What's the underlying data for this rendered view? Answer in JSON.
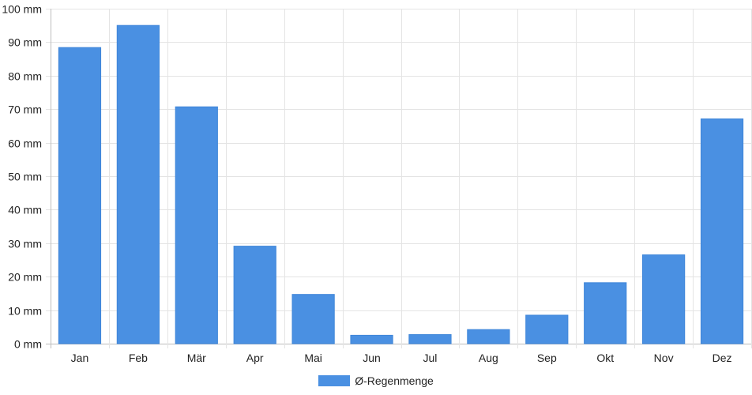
{
  "chart_data": {
    "type": "bar",
    "categories": [
      "Jan",
      "Feb",
      "Mär",
      "Apr",
      "Mai",
      "Jun",
      "Jul",
      "Aug",
      "Sep",
      "Okt",
      "Nov",
      "Dez"
    ],
    "series": [
      {
        "name": "Ø-Regenmenge",
        "values": [
          88.4,
          95.0,
          70.7,
          29.1,
          14.7,
          2.5,
          2.7,
          4.2,
          8.5,
          18.2,
          26.5,
          67.1
        ],
        "color": "#4a90e2"
      }
    ],
    "y_ticks": [
      "0 mm",
      "10 mm",
      "20 mm",
      "30 mm",
      "40 mm",
      "50 mm",
      "60 mm",
      "70 mm",
      "80 mm",
      "90 mm",
      "100 mm"
    ],
    "ylim": [
      0,
      100
    ],
    "grid": true,
    "legend_position": "bottom"
  }
}
